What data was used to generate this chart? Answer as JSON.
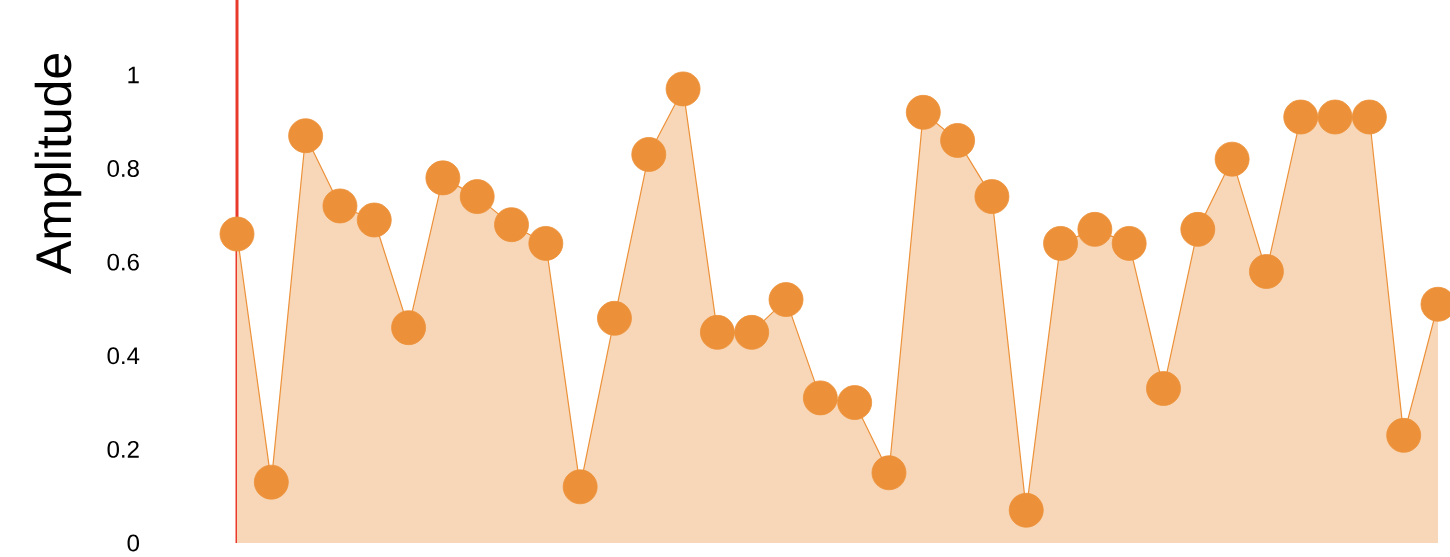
{
  "chart_data": {
    "type": "area",
    "ylabel": "Amplitude",
    "categories": [
      null,
      null,
      null,
      null,
      null,
      null,
      null,
      null,
      null,
      null,
      null,
      null,
      null,
      null,
      null,
      null,
      null,
      null,
      null,
      null,
      null,
      null,
      null,
      null,
      null,
      null,
      null,
      null,
      null,
      null,
      null,
      null,
      null,
      null,
      null,
      null
    ],
    "series": [
      {
        "color": "#ec9139",
        "values": [
          0.66,
          0.13,
          0.87,
          0.72,
          0.69,
          0.46,
          0.78,
          0.74,
          0.68,
          0.64,
          0.12,
          0.48,
          0.83,
          0.97,
          0.45,
          0.45,
          0.52,
          0.31,
          0.3,
          0.15,
          0.92,
          0.86,
          0.74,
          0.07,
          0.64,
          0.67,
          0.64,
          0.33,
          0.67,
          0.82,
          0.58,
          0.91,
          0.91,
          0.91,
          0.23,
          0.51
        ]
      }
    ],
    "ylim": [
      0,
      1.16
    ],
    "yticks": [
      0,
      0.2,
      0.4,
      0.6,
      0.8,
      1
    ],
    "tick_labels": "y",
    "marker": "circle",
    "grid": false
  }
}
